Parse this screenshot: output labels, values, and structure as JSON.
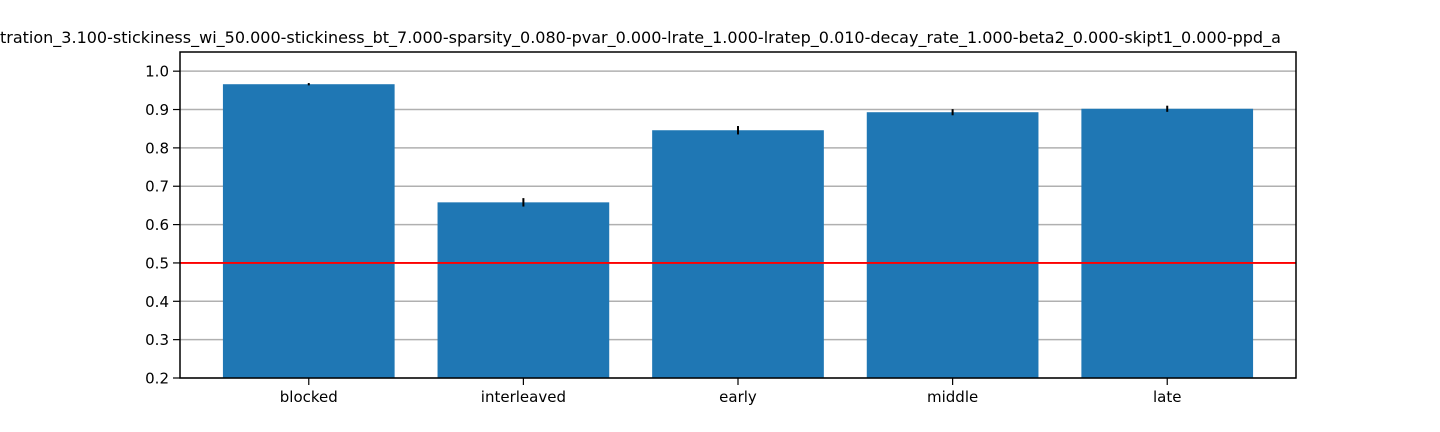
{
  "chart_data": {
    "type": "bar",
    "title": "tration_3.100-stickiness_wi_50.000-stickiness_bt_7.000-sparsity_0.080-pvar_0.000-lrate_1.000-lratep_0.010-decay_rate_1.000-beta2_0.000-skipt1_0.000-ppd_a",
    "xlabel": "",
    "ylabel": "",
    "categories": [
      "blocked",
      "interleaved",
      "early",
      "middle",
      "late"
    ],
    "values": [
      0.966,
      0.658,
      0.846,
      0.893,
      0.902
    ],
    "errors": [
      0.003,
      0.011,
      0.011,
      0.008,
      0.008
    ],
    "ylim": [
      0.2,
      1.05
    ],
    "yticks": [
      "0.2",
      "0.3",
      "0.4",
      "0.5",
      "0.6",
      "0.7",
      "0.8",
      "0.9",
      "1.0"
    ],
    "reference_line": 0.5,
    "grid": true,
    "colors": {
      "bar": "#1f77b4",
      "error_bar": "#000000",
      "reference_line": "#ff0000",
      "grid": "#b0b0b0"
    }
  }
}
